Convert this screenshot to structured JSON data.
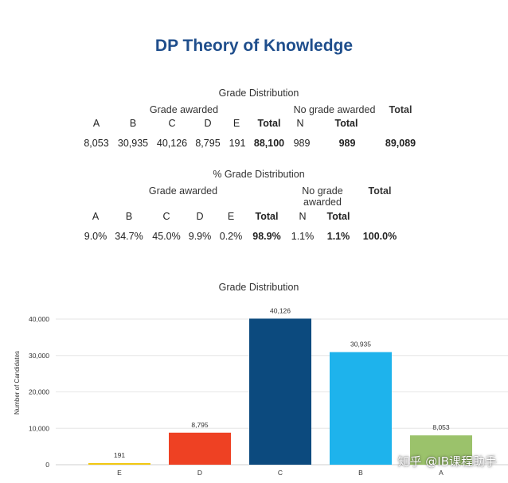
{
  "page_title": "DP Theory of Knowledge",
  "table1": {
    "title": "Grade Distribution",
    "group_awarded": "Grade awarded",
    "group_no_grade": "No grade awarded",
    "group_total": "Total",
    "headers": [
      "A",
      "B",
      "C",
      "D",
      "E",
      "Total",
      "N",
      "Total"
    ],
    "values": [
      "8,053",
      "30,935",
      "40,126",
      "8,795",
      "191",
      "88,100",
      "989",
      "989",
      "89,089"
    ]
  },
  "table2": {
    "title": "% Grade Distribution",
    "group_awarded": "Grade awarded",
    "group_no_grade": "No grade awarded",
    "group_total": "Total",
    "headers": [
      "A",
      "B",
      "C",
      "D",
      "E",
      "Total",
      "N",
      "Total"
    ],
    "values": [
      "9.0%",
      "34.7%",
      "45.0%",
      "9.9%",
      "0.2%",
      "98.9%",
      "1.1%",
      "1.1%",
      "100.0%"
    ]
  },
  "chart_data": {
    "type": "bar",
    "title": "Grade Distribution",
    "xlabel": "",
    "ylabel": "Number of Candidates",
    "categories": [
      "E",
      "D",
      "C",
      "B",
      "A"
    ],
    "values": [
      191,
      8795,
      40126,
      30935,
      8053
    ],
    "value_labels": [
      "191",
      "8,795",
      "40,126",
      "30,935",
      "8,053"
    ],
    "colors": [
      "#f2c811",
      "#ee4123",
      "#0c4a7e",
      "#1eb3ec",
      "#9bc26b"
    ],
    "yticks": [
      "0",
      "10,000",
      "20,000",
      "30,000",
      "40,000"
    ],
    "ylim": [
      0,
      40000
    ],
    "grid": true
  },
  "watermark": "知乎 @IB课程助手"
}
